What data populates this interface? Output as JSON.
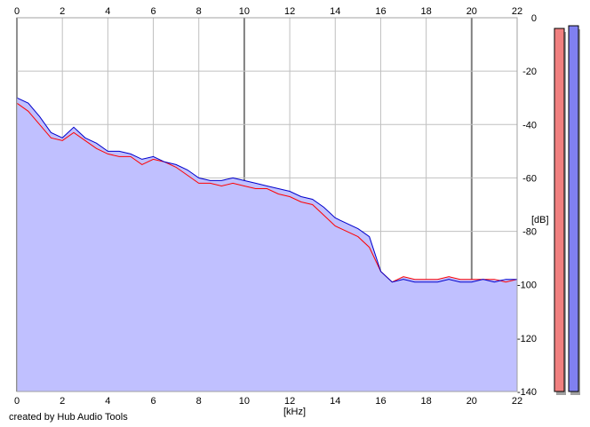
{
  "chart_data": {
    "type": "line",
    "xlabel": "[kHz]",
    "ylabel": "[dB]",
    "xlim": [
      0,
      22
    ],
    "ylim": [
      -140,
      0
    ],
    "x_ticks": [
      0,
      2,
      4,
      6,
      8,
      10,
      12,
      14,
      16,
      18,
      20,
      22
    ],
    "y_ticks": [
      0,
      -20,
      -40,
      -60,
      -80,
      -100,
      -120,
      -140
    ],
    "grid": true,
    "colors": {
      "left_channel": "#ff0000",
      "right_channel": "#0000cc",
      "area_fill": "#c0c0ff",
      "grid": "#c0c0c0",
      "grid_major": "#808080",
      "meter_left": "#f08080",
      "meter_right": "#8080f0"
    },
    "series": [
      {
        "x": [
          0.0,
          0.5,
          1.0,
          1.5,
          2.0,
          2.5,
          3.0,
          3.5,
          4.0,
          4.5,
          5.0,
          5.5,
          6.0,
          6.5,
          7.0,
          7.5,
          8.0,
          8.5,
          9.0,
          9.5,
          10.0,
          10.5,
          11.0,
          11.5,
          12.0,
          12.5,
          13.0,
          13.5,
          14.0,
          14.5,
          15.0,
          15.5,
          16.0,
          16.5,
          17.0,
          17.5,
          18.0,
          18.5,
          19.0,
          19.5,
          20.0,
          20.5,
          21.0,
          21.5,
          22.0
        ],
        "y": [
          -32,
          -35,
          -40,
          -45,
          -46,
          -43,
          -46,
          -49,
          -51,
          -52,
          -52,
          -55,
          -53,
          -54,
          -56,
          -59,
          -62,
          -62,
          -63,
          -62,
          -63,
          -64,
          -64,
          -66,
          -67,
          -69,
          -70,
          -74,
          -78,
          -80,
          -82,
          -86,
          -95,
          -99,
          -97,
          -98,
          -98,
          -98,
          -97,
          -98,
          -98,
          -98,
          -98,
          -99,
          -98
        ]
      },
      {
        "x": [
          0.0,
          0.5,
          1.0,
          1.5,
          2.0,
          2.5,
          3.0,
          3.5,
          4.0,
          4.5,
          5.0,
          5.5,
          6.0,
          6.5,
          7.0,
          7.5,
          8.0,
          8.5,
          9.0,
          9.5,
          10.0,
          10.5,
          11.0,
          11.5,
          12.0,
          12.5,
          13.0,
          13.5,
          14.0,
          14.5,
          15.0,
          15.5,
          16.0,
          16.5,
          17.0,
          17.5,
          18.0,
          18.5,
          19.0,
          19.5,
          20.0,
          20.5,
          21.0,
          21.5,
          22.0
        ],
        "y": [
          -30,
          -32,
          -37,
          -43,
          -45,
          -41,
          -45,
          -47,
          -50,
          -50,
          -51,
          -53,
          -52,
          -54,
          -55,
          -57,
          -60,
          -61,
          -61,
          -60,
          -61,
          -62,
          -63,
          -64,
          -65,
          -67,
          -68,
          -71,
          -75,
          -77,
          -79,
          -82,
          -95,
          -99,
          -98,
          -99,
          -99,
          -99,
          -98,
          -99,
          -99,
          -98,
          -99,
          -98,
          -98
        ]
      }
    ],
    "meters": {
      "left": -4,
      "right": -3
    }
  },
  "credit": "created by Hub Audio Tools"
}
